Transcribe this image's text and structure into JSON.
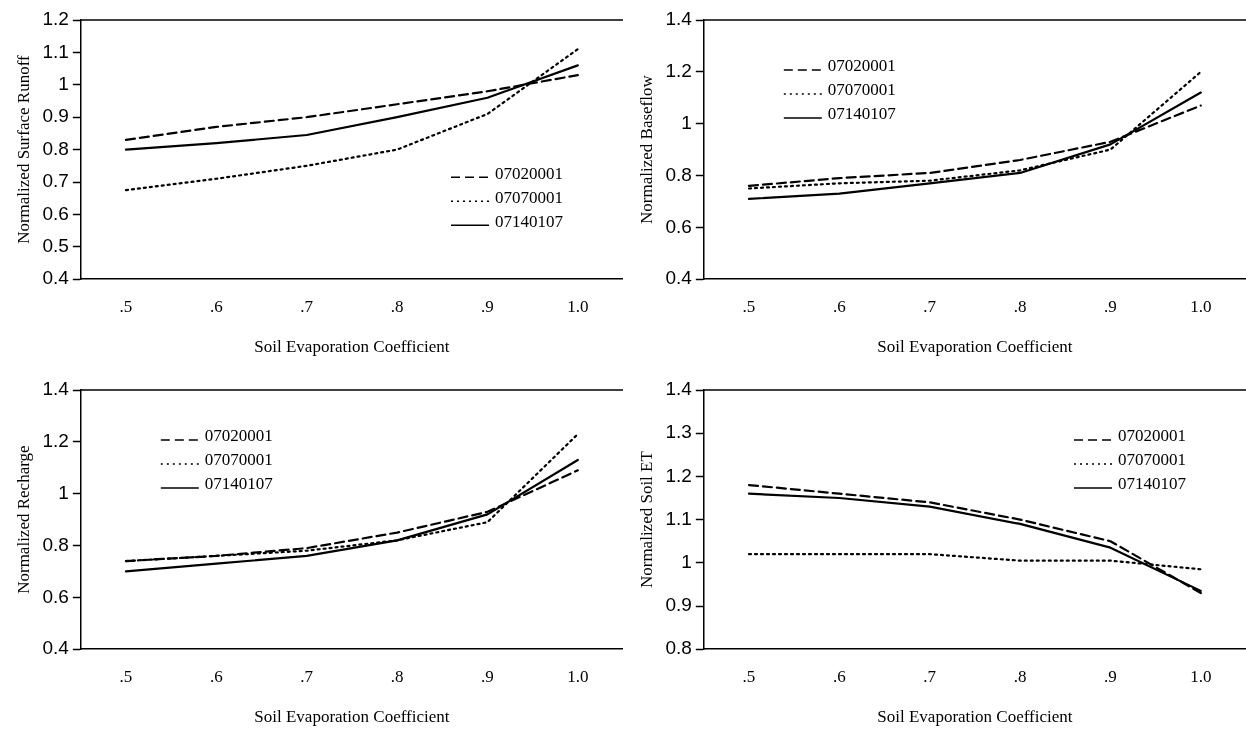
{
  "chart_data": [
    {
      "type": "line",
      "xlabel": "Soil Evaporation Coefficient",
      "ylabel": "Normalized Surface Runoff",
      "categories": [
        ".5",
        ".6",
        ".7",
        ".8",
        ".9",
        "1.0"
      ],
      "ylim": [
        0.4,
        1.2
      ],
      "yticks": [
        0.4,
        0.5,
        0.6,
        0.7,
        0.8,
        0.9,
        1,
        1.1,
        1.2
      ],
      "legend": "bottom right",
      "marker": "none",
      "series": [
        {
          "name": "07020001",
          "color": "#000000",
          "line_style": "dashed",
          "values": [
            0.83,
            0.87,
            0.9,
            0.94,
            0.98,
            1.03
          ]
        },
        {
          "name": "07070001",
          "color": "#000000",
          "line_style": "dotted",
          "values": [
            0.675,
            0.71,
            0.75,
            0.8,
            0.91,
            1.11
          ]
        },
        {
          "name": "07140107",
          "color": "#000000",
          "line_style": "solid",
          "values": [
            0.8,
            0.82,
            0.845,
            0.9,
            0.96,
            1.06
          ]
        }
      ]
    },
    {
      "type": "line",
      "xlabel": "Soil Evaporation Coefficient",
      "ylabel": "Normalized Baseflow",
      "categories": [
        ".5",
        ".6",
        ".7",
        ".8",
        ".9",
        "1.0"
      ],
      "ylim": [
        0.4,
        1.4
      ],
      "yticks": [
        0.4,
        0.6,
        0.8,
        1,
        1.2,
        1.4
      ],
      "legend": "top left",
      "marker": "none",
      "series": [
        {
          "name": "07020001",
          "color": "#000000",
          "line_style": "dashed",
          "values": [
            0.76,
            0.79,
            0.81,
            0.86,
            0.93,
            1.07
          ]
        },
        {
          "name": "07070001",
          "color": "#000000",
          "line_style": "dotted",
          "values": [
            0.75,
            0.77,
            0.78,
            0.82,
            0.9,
            1.2
          ]
        },
        {
          "name": "07140107",
          "color": "#000000",
          "line_style": "solid",
          "values": [
            0.71,
            0.73,
            0.77,
            0.81,
            0.92,
            1.12
          ]
        }
      ]
    },
    {
      "type": "line",
      "xlabel": "Soil Evaporation Coefficient",
      "ylabel": "Normalized Recharge",
      "categories": [
        ".5",
        ".6",
        ".7",
        ".8",
        ".9",
        "1.0"
      ],
      "ylim": [
        0.4,
        1.4
      ],
      "yticks": [
        0.4,
        0.6,
        0.8,
        1,
        1.2,
        1.4
      ],
      "legend": "top left",
      "marker": "none",
      "series": [
        {
          "name": "07020001",
          "color": "#000000",
          "line_style": "dashed",
          "values": [
            0.74,
            0.76,
            0.79,
            0.85,
            0.93,
            1.09
          ]
        },
        {
          "name": "07070001",
          "color": "#000000",
          "line_style": "dotted",
          "values": [
            0.74,
            0.76,
            0.78,
            0.82,
            0.89,
            1.23
          ]
        },
        {
          "name": "07140107",
          "color": "#000000",
          "line_style": "solid",
          "values": [
            0.7,
            0.73,
            0.76,
            0.82,
            0.92,
            1.13
          ]
        }
      ]
    },
    {
      "type": "line",
      "xlabel": "Soil Evaporation Coefficient",
      "ylabel": "Normalized Soil ET",
      "categories": [
        ".5",
        ".6",
        ".7",
        ".8",
        ".9",
        "1.0"
      ],
      "ylim": [
        0.8,
        1.4
      ],
      "yticks": [
        0.8,
        0.9,
        1,
        1.1,
        1.2,
        1.3,
        1.4
      ],
      "legend": "top right",
      "marker": "none",
      "series": [
        {
          "name": "07020001",
          "color": "#000000",
          "line_style": "dashed",
          "values": [
            1.18,
            1.16,
            1.14,
            1.1,
            1.05,
            0.93
          ]
        },
        {
          "name": "07070001",
          "color": "#000000",
          "line_style": "dotted",
          "values": [
            1.02,
            1.02,
            1.02,
            1.005,
            1.005,
            0.985
          ]
        },
        {
          "name": "07140107",
          "color": "#000000",
          "line_style": "solid",
          "values": [
            1.16,
            1.15,
            1.13,
            1.09,
            1.035,
            0.935
          ]
        }
      ]
    }
  ]
}
